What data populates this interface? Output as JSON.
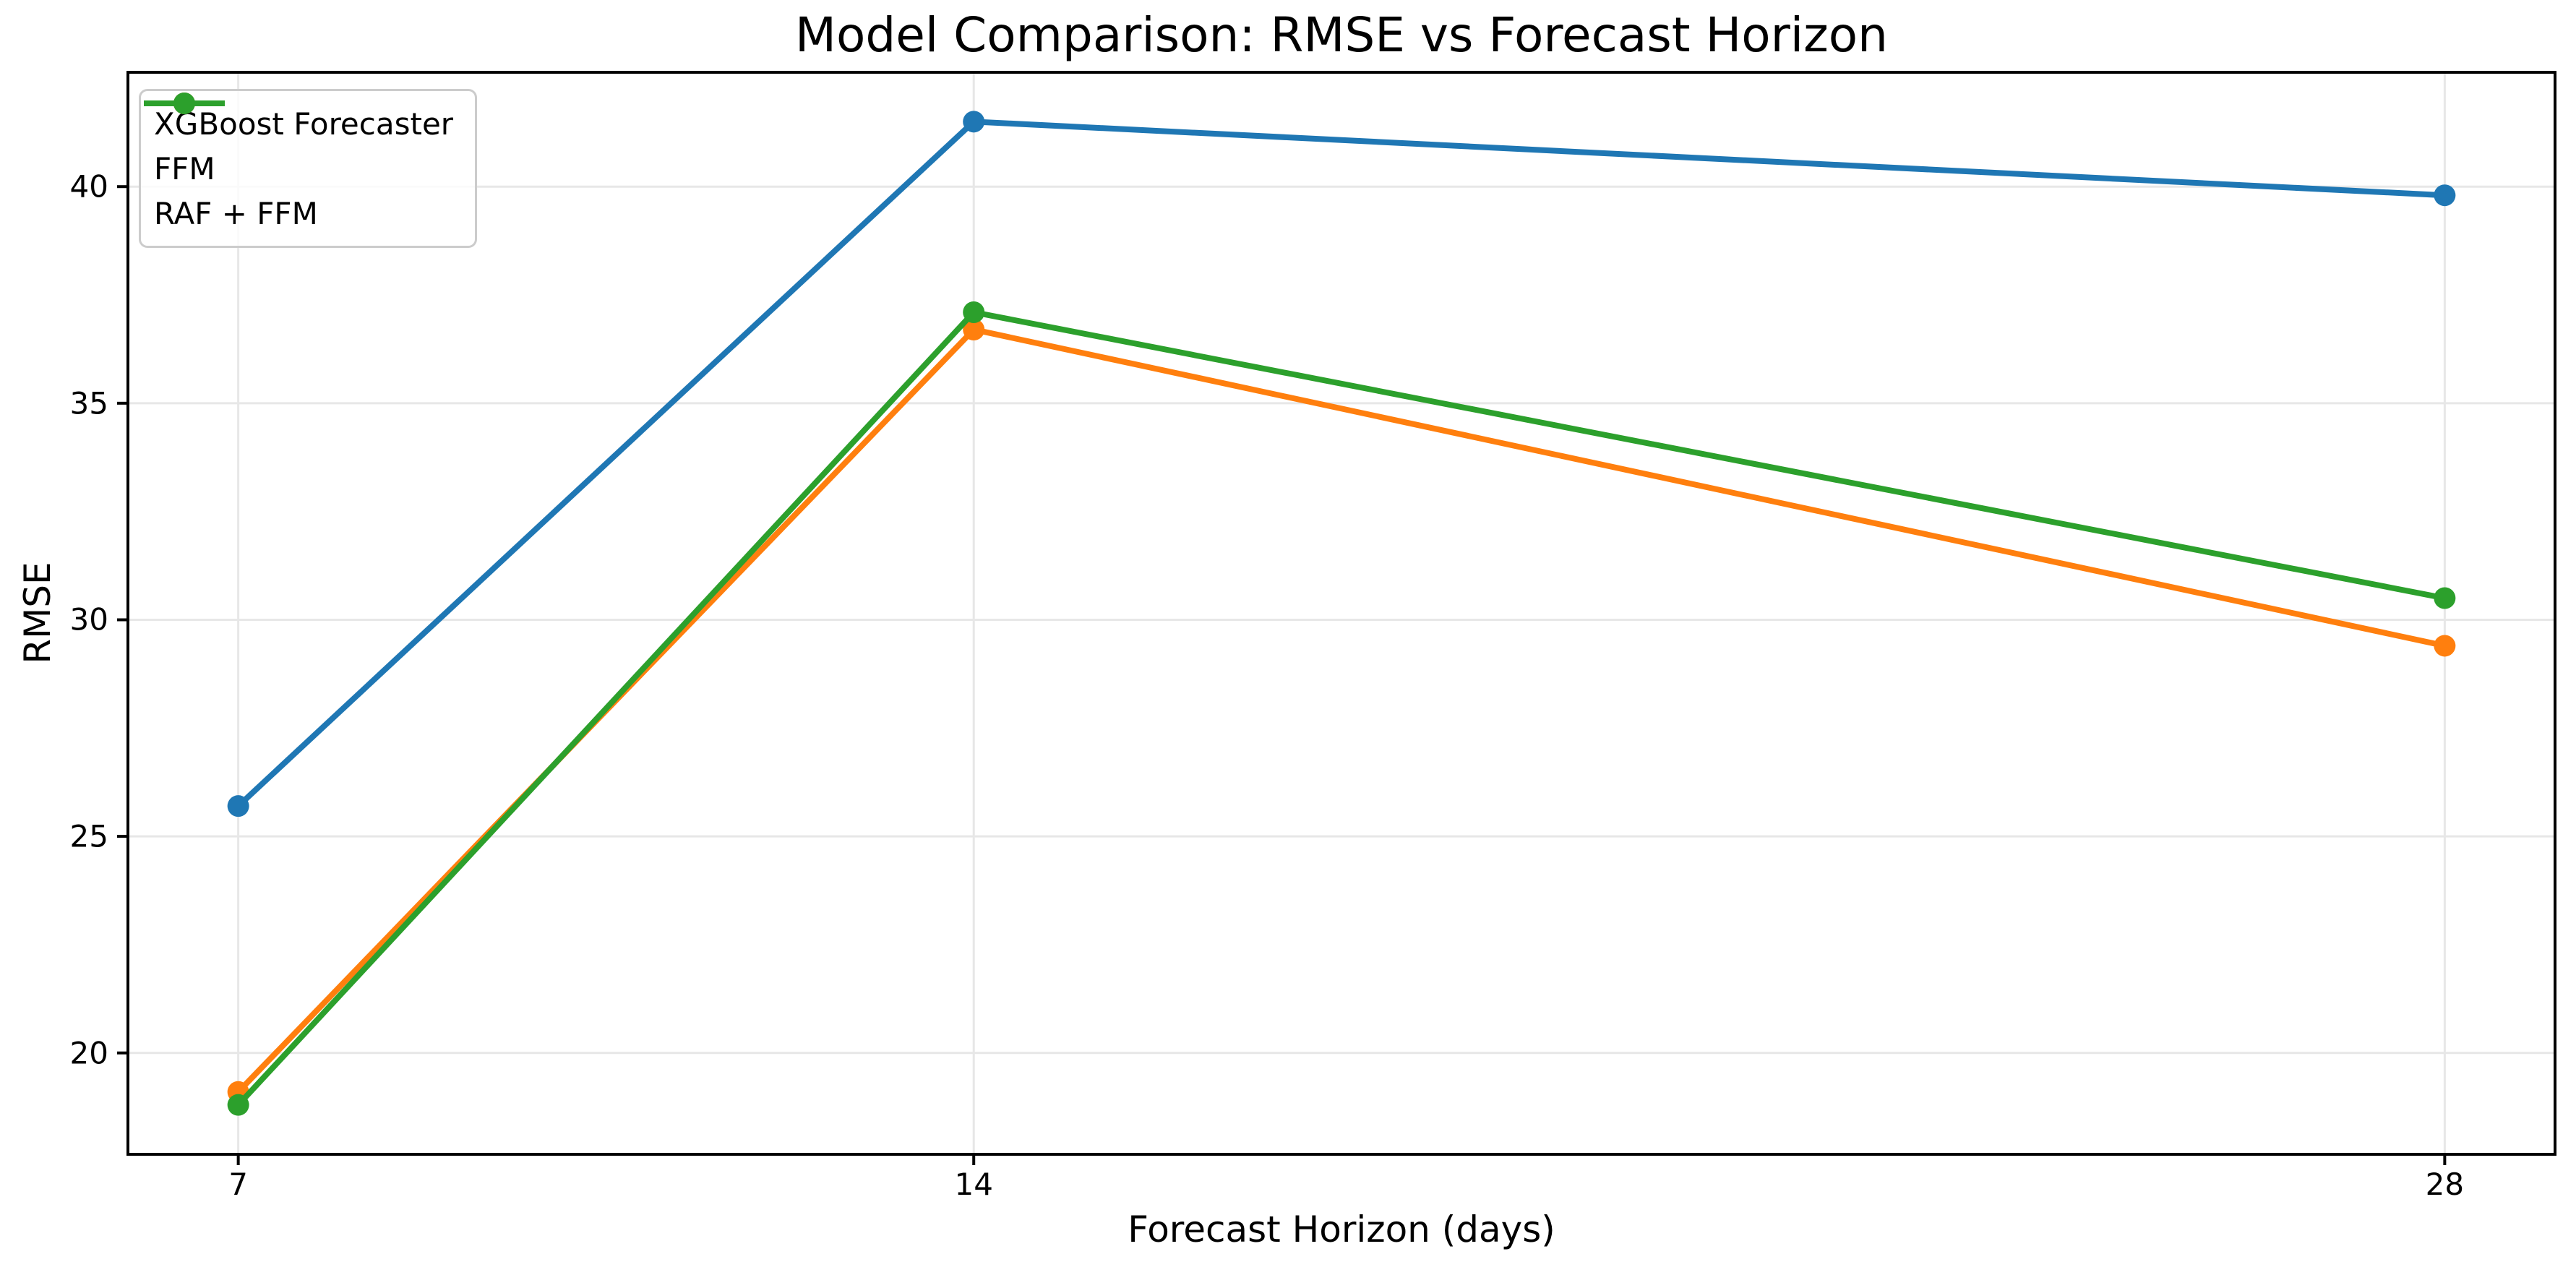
{
  "chart_data": {
    "type": "line",
    "title": "Model Comparison: RMSE vs Forecast Horizon",
    "xlabel": "Forecast Horizon (days)",
    "ylabel": "RMSE",
    "x": [
      7,
      14,
      28
    ],
    "xticks": [
      "7",
      "14",
      "28"
    ],
    "yticks": [
      "20",
      "25",
      "30",
      "35",
      "40"
    ],
    "ytick_values": [
      20,
      25,
      30,
      35,
      40
    ],
    "xlim": [
      5.95,
      29.05
    ],
    "ylim": [
      17.66,
      42.64
    ],
    "grid": true,
    "legend_position": "upper left",
    "series": [
      {
        "name": "XGBoost Forecaster",
        "color": "#1f77b4",
        "values": [
          25.7,
          41.5,
          39.8
        ]
      },
      {
        "name": "FFM",
        "color": "#ff7f0e",
        "values": [
          19.1,
          36.7,
          29.4
        ]
      },
      {
        "name": "RAF + FFM",
        "color": "#2ca02c",
        "values": [
          18.8,
          37.1,
          30.5
        ]
      }
    ],
    "colors": {
      "grid": "#e7e7e7",
      "spine": "#000000",
      "text": "#000000",
      "legend_border": "#cccccc"
    }
  }
}
